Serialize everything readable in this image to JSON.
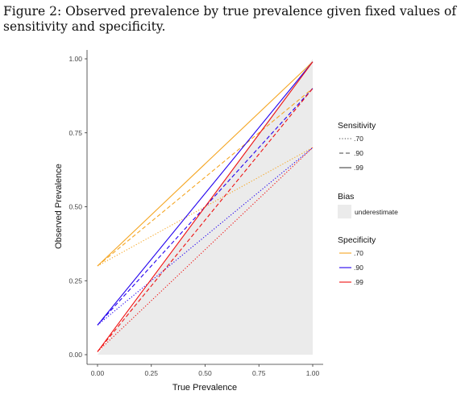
{
  "caption": "Figure 2:  Observed prevalence by true prevalence given fixed values of sensitivity and specificity.",
  "chart_data": {
    "type": "line",
    "xlabel": "True Prevalence",
    "ylabel": "Observed Prevalence",
    "xlim": [
      0,
      1
    ],
    "ylim": [
      0,
      1
    ],
    "x_ticks": [
      "0.00",
      "0.25",
      "0.50",
      "0.75",
      "1.00"
    ],
    "y_ticks": [
      "0.00",
      "0.25",
      "0.50",
      "0.75",
      "1.00"
    ],
    "grid": false,
    "shaded_region": {
      "name": "underestimate",
      "color": "#ebebeb",
      "description_rule": "below y = x"
    },
    "legend_placement": "right",
    "legends": {
      "sensitivity": {
        "title": "Sensitivity",
        "items": [
          {
            "label": ".70",
            "dash": "dotted"
          },
          {
            "label": ".90",
            "dash": "dashed"
          },
          {
            "label": ".99",
            "dash": "solid"
          }
        ]
      },
      "bias": {
        "title": "Bias",
        "items": [
          {
            "label": "underestimate",
            "color": "#ebebeb"
          }
        ]
      },
      "specificity": {
        "title": "Specificity",
        "items": [
          {
            "label": ".70",
            "color": "#f5a623"
          },
          {
            "label": ".90",
            "color": "#2200ee"
          },
          {
            "label": ".99",
            "color": "#ee1111"
          }
        ]
      }
    },
    "series": [
      {
        "sensitivity": 0.7,
        "specificity": 0.7,
        "color": "#f5a623",
        "dash": "dotted",
        "x": [
          0,
          1
        ],
        "y": [
          0.3,
          0.7
        ]
      },
      {
        "sensitivity": 0.9,
        "specificity": 0.7,
        "color": "#f5a623",
        "dash": "dashed",
        "x": [
          0,
          1
        ],
        "y": [
          0.3,
          0.9
        ]
      },
      {
        "sensitivity": 0.99,
        "specificity": 0.7,
        "color": "#f5a623",
        "dash": "solid",
        "x": [
          0,
          1
        ],
        "y": [
          0.3,
          0.99
        ]
      },
      {
        "sensitivity": 0.7,
        "specificity": 0.9,
        "color": "#2200ee",
        "dash": "dotted",
        "x": [
          0,
          1
        ],
        "y": [
          0.1,
          0.7
        ]
      },
      {
        "sensitivity": 0.9,
        "specificity": 0.9,
        "color": "#2200ee",
        "dash": "dashed",
        "x": [
          0,
          1
        ],
        "y": [
          0.1,
          0.9
        ]
      },
      {
        "sensitivity": 0.99,
        "specificity": 0.9,
        "color": "#2200ee",
        "dash": "solid",
        "x": [
          0,
          1
        ],
        "y": [
          0.1,
          0.99
        ]
      },
      {
        "sensitivity": 0.7,
        "specificity": 0.99,
        "color": "#ee1111",
        "dash": "dotted",
        "x": [
          0,
          1
        ],
        "y": [
          0.01,
          0.7
        ]
      },
      {
        "sensitivity": 0.9,
        "specificity": 0.99,
        "color": "#ee1111",
        "dash": "dashed",
        "x": [
          0,
          1
        ],
        "y": [
          0.01,
          0.9
        ]
      },
      {
        "sensitivity": 0.99,
        "specificity": 0.99,
        "color": "#ee1111",
        "dash": "solid",
        "x": [
          0,
          1
        ],
        "y": [
          0.01,
          0.99
        ]
      }
    ]
  }
}
